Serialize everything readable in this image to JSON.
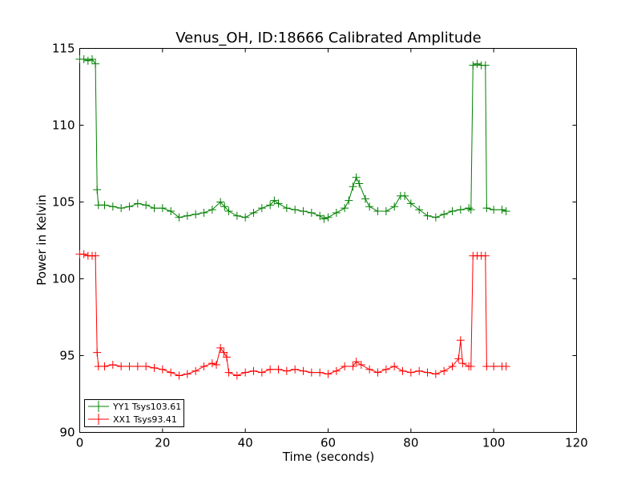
{
  "chart_data": {
    "type": "line",
    "title": "Venus_OH, ID:18666 Calibrated Amplitude",
    "xlabel": "Time (seconds)",
    "ylabel": "Power in Kelvin",
    "xlim": [
      0,
      120
    ],
    "ylim": [
      90,
      115
    ],
    "xticks": [
      0,
      20,
      40,
      60,
      80,
      100,
      120
    ],
    "yticks": [
      90,
      95,
      100,
      105,
      110,
      115
    ],
    "grid": false,
    "legend_position": "lower-left",
    "marker": "+",
    "series": [
      {
        "name": "YY1 Tsys103.61",
        "color": "#008000",
        "points": [
          [
            0,
            114.3
          ],
          [
            1,
            114.3
          ],
          [
            2,
            114.2
          ],
          [
            3,
            114.3
          ],
          [
            3.8,
            114.0
          ],
          [
            4.2,
            105.8
          ],
          [
            4.5,
            104.8
          ],
          [
            6,
            104.8
          ],
          [
            8,
            104.7
          ],
          [
            10,
            104.6
          ],
          [
            12,
            104.7
          ],
          [
            14,
            104.9
          ],
          [
            16,
            104.8
          ],
          [
            18,
            104.6
          ],
          [
            20,
            104.6
          ],
          [
            22,
            104.4
          ],
          [
            24,
            104.0
          ],
          [
            26,
            104.1
          ],
          [
            28,
            104.2
          ],
          [
            30,
            104.3
          ],
          [
            32,
            104.5
          ],
          [
            34,
            105.0
          ],
          [
            35,
            104.7
          ],
          [
            36,
            104.4
          ],
          [
            38,
            104.1
          ],
          [
            40,
            104.0
          ],
          [
            42,
            104.3
          ],
          [
            44,
            104.6
          ],
          [
            46,
            104.8
          ],
          [
            47,
            105.1
          ],
          [
            48,
            104.9
          ],
          [
            50,
            104.6
          ],
          [
            52,
            104.5
          ],
          [
            54,
            104.4
          ],
          [
            56,
            104.3
          ],
          [
            58,
            104.1
          ],
          [
            59,
            103.9
          ],
          [
            60,
            104.0
          ],
          [
            62,
            104.3
          ],
          [
            64,
            104.6
          ],
          [
            65,
            105.1
          ],
          [
            66,
            106.0
          ],
          [
            66.8,
            106.6
          ],
          [
            67.5,
            106.2
          ],
          [
            69,
            105.2
          ],
          [
            70,
            104.7
          ],
          [
            72,
            104.4
          ],
          [
            74,
            104.4
          ],
          [
            76,
            104.7
          ],
          [
            77.5,
            105.4
          ],
          [
            78.5,
            105.4
          ],
          [
            80,
            104.9
          ],
          [
            82,
            104.5
          ],
          [
            84,
            104.1
          ],
          [
            86,
            104.0
          ],
          [
            88,
            104.2
          ],
          [
            90,
            104.4
          ],
          [
            92,
            104.5
          ],
          [
            94,
            104.6
          ],
          [
            94.5,
            104.5
          ],
          [
            95,
            113.9
          ],
          [
            96,
            114.0
          ],
          [
            97,
            113.9
          ],
          [
            98,
            113.9
          ],
          [
            98.3,
            104.6
          ],
          [
            100,
            104.5
          ],
          [
            102,
            104.5
          ],
          [
            103,
            104.4
          ]
        ]
      },
      {
        "name": "XX1 Tsys93.41",
        "color": "#ff0000",
        "points": [
          [
            0,
            101.6
          ],
          [
            1,
            101.6
          ],
          [
            2,
            101.5
          ],
          [
            3,
            101.5
          ],
          [
            3.8,
            101.5
          ],
          [
            4.2,
            95.2
          ],
          [
            4.5,
            94.3
          ],
          [
            6,
            94.3
          ],
          [
            8,
            94.4
          ],
          [
            10,
            94.3
          ],
          [
            12,
            94.3
          ],
          [
            14,
            94.3
          ],
          [
            16,
            94.3
          ],
          [
            18,
            94.2
          ],
          [
            20,
            94.1
          ],
          [
            22,
            93.9
          ],
          [
            24,
            93.7
          ],
          [
            26,
            93.8
          ],
          [
            28,
            94.0
          ],
          [
            30,
            94.3
          ],
          [
            32,
            94.5
          ],
          [
            33,
            94.4
          ],
          [
            34,
            95.5
          ],
          [
            34.8,
            95.2
          ],
          [
            35.5,
            94.9
          ],
          [
            36,
            93.9
          ],
          [
            38,
            93.7
          ],
          [
            40,
            93.9
          ],
          [
            42,
            94.0
          ],
          [
            44,
            93.9
          ],
          [
            46,
            94.1
          ],
          [
            48,
            94.1
          ],
          [
            50,
            94.0
          ],
          [
            52,
            94.1
          ],
          [
            54,
            94.0
          ],
          [
            56,
            93.9
          ],
          [
            58,
            93.9
          ],
          [
            60,
            93.8
          ],
          [
            62,
            94.0
          ],
          [
            64,
            94.3
          ],
          [
            66,
            94.3
          ],
          [
            66.8,
            94.6
          ],
          [
            68,
            94.4
          ],
          [
            70,
            94.1
          ],
          [
            72,
            93.9
          ],
          [
            74,
            94.1
          ],
          [
            76,
            94.3
          ],
          [
            78,
            94.0
          ],
          [
            80,
            93.9
          ],
          [
            82,
            94.0
          ],
          [
            84,
            93.9
          ],
          [
            86,
            93.8
          ],
          [
            88,
            94.0
          ],
          [
            90,
            94.3
          ],
          [
            91.5,
            94.8
          ],
          [
            92,
            96.0
          ],
          [
            92.5,
            94.5
          ],
          [
            94,
            94.3
          ],
          [
            94.5,
            94.3
          ],
          [
            95,
            101.5
          ],
          [
            96,
            101.5
          ],
          [
            97,
            101.5
          ],
          [
            98,
            101.5
          ],
          [
            98.3,
            94.3
          ],
          [
            100,
            94.3
          ],
          [
            102,
            94.3
          ],
          [
            103,
            94.3
          ]
        ]
      }
    ]
  }
}
